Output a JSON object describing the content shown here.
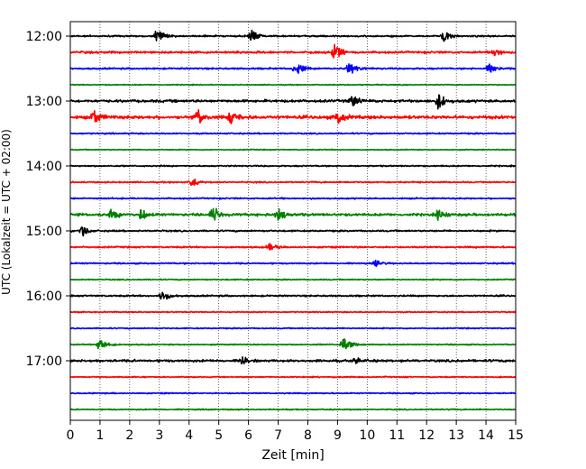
{
  "chart_data": {
    "type": "line",
    "subtype": "helicorder",
    "title": "",
    "xlabel": "Zeit  [min]",
    "ylabel": "UTC (Lokalzeit = UTC + 02:00)",
    "xlim": [
      0,
      15
    ],
    "x_ticks": [
      "0",
      "1",
      "2",
      "3",
      "4",
      "5",
      "6",
      "7",
      "8",
      "9",
      "10",
      "11",
      "12",
      "13",
      "14",
      "15"
    ],
    "y_tick_labels": [
      "12:00",
      "13:00",
      "14:00",
      "15:00",
      "16:00",
      "17:00"
    ],
    "grid": "vertical dotted",
    "legend": "none",
    "color_cycle": [
      "#000000",
      "#ff0000",
      "#0000ff",
      "#008000"
    ],
    "trace_start_times": [
      "12:00",
      "12:15",
      "12:30",
      "12:45",
      "13:00",
      "13:15",
      "13:30",
      "13:45",
      "14:00",
      "14:15",
      "14:30",
      "14:45",
      "15:00",
      "15:15",
      "15:30",
      "15:45",
      "16:00",
      "16:15",
      "16:30",
      "16:45",
      "17:00",
      "17:15",
      "17:30",
      "17:45"
    ],
    "trace_noise_level": [
      0.35,
      0.45,
      0.35,
      0.2,
      0.55,
      0.7,
      0.3,
      0.2,
      0.3,
      0.3,
      0.3,
      0.55,
      0.35,
      0.35,
      0.3,
      0.25,
      0.35,
      0.25,
      0.25,
      0.25,
      0.5,
      0.25,
      0.25,
      0.25
    ],
    "events": [
      {
        "trace": "12:00",
        "t": 2.9,
        "amplitude": 1.0
      },
      {
        "trace": "12:00",
        "t": 6.1,
        "amplitude": 0.9
      },
      {
        "trace": "12:00",
        "t": 12.6,
        "amplitude": 0.9
      },
      {
        "trace": "12:15",
        "t": 8.9,
        "amplitude": 1.1
      },
      {
        "trace": "12:15",
        "t": 14.3,
        "amplitude": 0.6
      },
      {
        "trace": "12:30",
        "t": 7.6,
        "amplitude": 0.9
      },
      {
        "trace": "12:30",
        "t": 9.4,
        "amplitude": 1.0
      },
      {
        "trace": "12:30",
        "t": 14.1,
        "amplitude": 0.8
      },
      {
        "trace": "13:00",
        "t": 9.5,
        "amplitude": 0.9
      },
      {
        "trace": "13:00",
        "t": 12.4,
        "amplitude": 1.1
      },
      {
        "trace": "13:15",
        "t": 0.8,
        "amplitude": 1.0
      },
      {
        "trace": "13:15",
        "t": 4.3,
        "amplitude": 1.0
      },
      {
        "trace": "13:15",
        "t": 5.4,
        "amplitude": 1.0
      },
      {
        "trace": "13:15",
        "t": 9.0,
        "amplitude": 1.0
      },
      {
        "trace": "14:15",
        "t": 4.1,
        "amplitude": 0.6
      },
      {
        "trace": "14:45",
        "t": 1.4,
        "amplitude": 0.9
      },
      {
        "trace": "14:45",
        "t": 2.4,
        "amplitude": 0.9
      },
      {
        "trace": "14:45",
        "t": 4.8,
        "amplitude": 1.2
      },
      {
        "trace": "14:45",
        "t": 7.0,
        "amplitude": 0.9
      },
      {
        "trace": "14:45",
        "t": 12.4,
        "amplitude": 0.8
      },
      {
        "trace": "15:00",
        "t": 0.4,
        "amplitude": 0.7
      },
      {
        "trace": "15:15",
        "t": 6.7,
        "amplitude": 0.6
      },
      {
        "trace": "15:30",
        "t": 10.3,
        "amplitude": 0.5
      },
      {
        "trace": "16:00",
        "t": 3.1,
        "amplitude": 0.7
      },
      {
        "trace": "16:45",
        "t": 1.0,
        "amplitude": 0.9
      },
      {
        "trace": "16:45",
        "t": 9.2,
        "amplitude": 1.1
      },
      {
        "trace": "17:00",
        "t": 5.8,
        "amplitude": 0.6
      },
      {
        "trace": "17:00",
        "t": 9.6,
        "amplitude": 0.5
      }
    ]
  }
}
